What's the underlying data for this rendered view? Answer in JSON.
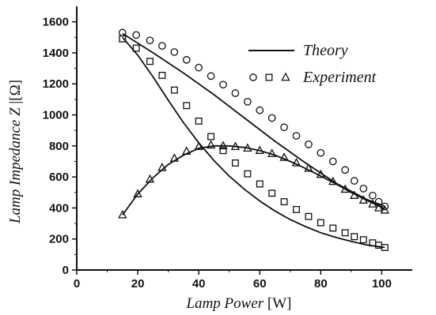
{
  "chart_data": {
    "type": "line",
    "xlabel": "Lamp Power",
    "xlabel_unit": "[W]",
    "ylabel": "Lamp Impedance Z",
    "ylabel_unit": "|[Ω]",
    "xlim": [
      0,
      110
    ],
    "ylim": [
      0,
      1700
    ],
    "xticks": [
      "0",
      "20",
      "40",
      "60",
      "80",
      "100"
    ],
    "xtick_values": [
      0,
      20,
      40,
      60,
      80,
      100
    ],
    "yticks": [
      "0",
      "200",
      "400",
      "600",
      "800",
      "1000",
      "1200",
      "1400",
      "1600"
    ],
    "ytick_values": [
      0,
      200,
      400,
      600,
      800,
      1000,
      1200,
      1400,
      1600
    ],
    "grid": false,
    "legend_position": "top-right",
    "legend": {
      "theory": "Theory",
      "experiment": "Experiment"
    },
    "theory_curves": [
      {
        "x": [
          15,
          25,
          35,
          45,
          55,
          65,
          75,
          85,
          95,
          101
        ],
        "y": [
          1525,
          1400,
          1270,
          1130,
          980,
          830,
          690,
          560,
          455,
          410
        ]
      },
      {
        "x": [
          15,
          20,
          25,
          30,
          35,
          40,
          45,
          50,
          55,
          60,
          65,
          70,
          75,
          80,
          85,
          90,
          95,
          101
        ],
        "y": [
          1500,
          1385,
          1245,
          1095,
          950,
          820,
          705,
          605,
          520,
          445,
          380,
          325,
          280,
          240,
          210,
          185,
          162,
          145
        ]
      },
      {
        "x": [
          15,
          20,
          25,
          30,
          35,
          40,
          45,
          50,
          55,
          60,
          65,
          70,
          75,
          80,
          85,
          90,
          95,
          101
        ],
        "y": [
          355,
          490,
          595,
          680,
          740,
          785,
          800,
          800,
          790,
          770,
          740,
          700,
          655,
          605,
          555,
          500,
          450,
          395
        ]
      }
    ],
    "series": [
      {
        "marker": "circle",
        "x": [
          15,
          19.5,
          24,
          28,
          32,
          36,
          40,
          44,
          48,
          52,
          56,
          60,
          64,
          68,
          72,
          76,
          80,
          84,
          88,
          91,
          94,
          97,
          99,
          101
        ],
        "y": [
          1530,
          1515,
          1480,
          1445,
          1405,
          1355,
          1305,
          1250,
          1195,
          1140,
          1085,
          1030,
          980,
          920,
          865,
          810,
          755,
          700,
          645,
          575,
          525,
          480,
          440,
          410
        ]
      },
      {
        "marker": "square",
        "x": [
          15,
          19.5,
          24,
          28,
          32,
          36,
          40,
          44,
          48,
          52,
          56,
          60,
          64,
          68,
          72,
          76,
          80,
          84,
          88,
          91,
          94,
          97,
          99,
          101
        ],
        "y": [
          1490,
          1430,
          1345,
          1255,
          1160,
          1060,
          960,
          860,
          770,
          690,
          620,
          555,
          495,
          440,
          390,
          345,
          305,
          270,
          240,
          215,
          195,
          175,
          160,
          145
        ]
      },
      {
        "marker": "triangle",
        "x": [
          15,
          20,
          24,
          28,
          32,
          36,
          40,
          44,
          48,
          52,
          56,
          60,
          64,
          68,
          72,
          76,
          80,
          84,
          88,
          91,
          94,
          97,
          99,
          101
        ],
        "y": [
          355,
          490,
          585,
          660,
          720,
          765,
          795,
          805,
          800,
          795,
          785,
          770,
          750,
          725,
          690,
          655,
          615,
          570,
          520,
          480,
          450,
          425,
          400,
          385
        ]
      }
    ]
  }
}
